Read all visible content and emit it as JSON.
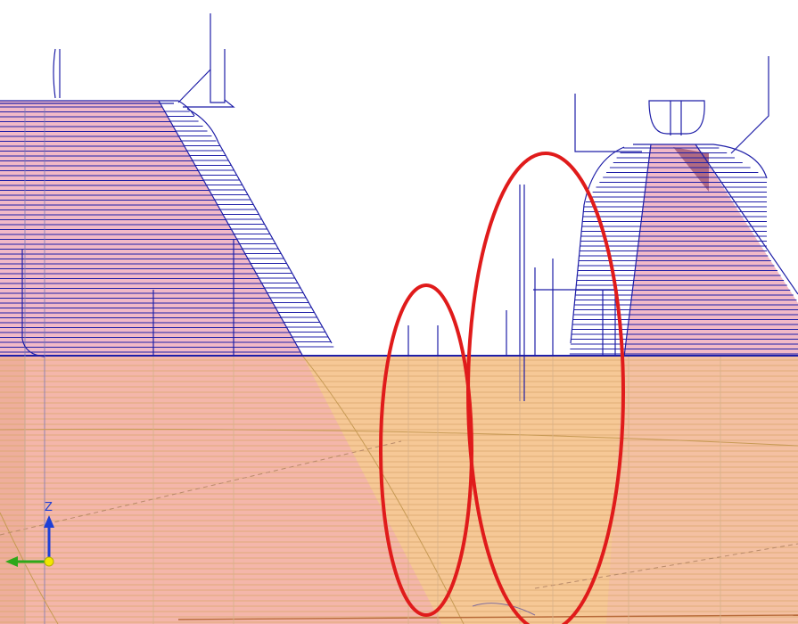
{
  "viewport": {
    "type": "cam-3d-toolpath-view",
    "background_color": "#ffffff"
  },
  "axis_triad": {
    "z_label": "Z",
    "z_color": "#1e3fd6",
    "x_color": "#2ea81a",
    "origin_color": "#f2e600"
  },
  "colors": {
    "toolpath_blue": "#1f1fa8",
    "part_pink": "#f1b9c7",
    "stock_orange": "#f6c896",
    "highlight_red": "#e01b1b",
    "grid_line": "#c79a55"
  },
  "annotations": [
    {
      "shape": "ellipse",
      "color": "red",
      "meaning": "highlight-region-left"
    },
    {
      "shape": "ellipse",
      "color": "red",
      "meaning": "highlight-region-right"
    }
  ]
}
